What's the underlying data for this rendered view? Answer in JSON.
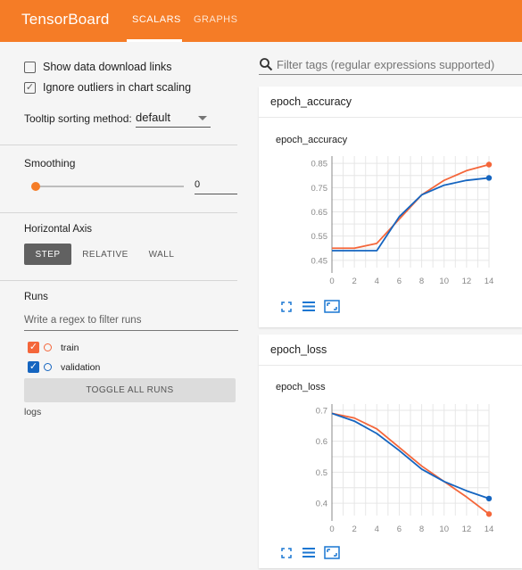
{
  "header": {
    "brand": "TensorBoard",
    "tabs": [
      {
        "label": "SCALARS",
        "active": true
      },
      {
        "label": "GRAPHS",
        "active": false
      }
    ],
    "accent": "#f57c26"
  },
  "sidebar": {
    "show_download_label": "Show data download links",
    "show_download_checked": false,
    "ignore_outliers_label": "Ignore outliers in chart scaling",
    "ignore_outliers_checked": true,
    "tooltip_label": "Tooltip sorting method:",
    "tooltip_value": "default",
    "smoothing_label": "Smoothing",
    "smoothing_value": "0",
    "haxis_label": "Horizontal Axis",
    "haxis_options": [
      "STEP",
      "RELATIVE",
      "WALL"
    ],
    "haxis_selected": "STEP",
    "runs_label": "Runs",
    "runs_filter_placeholder": "Write a regex to filter runs",
    "runs": [
      {
        "name": "train",
        "color": "#f4663a",
        "checked": true
      },
      {
        "name": "validation",
        "color": "#1565c0",
        "checked": true
      }
    ],
    "toggle_label": "TOGGLE ALL RUNS",
    "logdir": "logs"
  },
  "main": {
    "filter_placeholder": "Filter tags (regular expressions supported)",
    "cards": [
      {
        "header": "epoch_accuracy",
        "title": "epoch_accuracy"
      },
      {
        "header": "epoch_loss",
        "title": "epoch_loss"
      }
    ]
  },
  "chart_data": [
    {
      "type": "line",
      "title": "epoch_accuracy",
      "x": [
        0,
        2,
        4,
        6,
        8,
        10,
        12,
        14
      ],
      "xlim": [
        0,
        14
      ],
      "ylim": [
        0.42,
        0.88
      ],
      "yticks": [
        0.45,
        0.55,
        0.65,
        0.75,
        0.85
      ],
      "series": [
        {
          "name": "train",
          "color": "#f4663a",
          "values": [
            0.5,
            0.5,
            0.52,
            0.62,
            0.72,
            0.78,
            0.82,
            0.845
          ]
        },
        {
          "name": "validation",
          "color": "#1565c0",
          "values": [
            0.49,
            0.49,
            0.49,
            0.63,
            0.72,
            0.76,
            0.78,
            0.79
          ]
        }
      ]
    },
    {
      "type": "line",
      "title": "epoch_loss",
      "x": [
        0,
        2,
        4,
        6,
        8,
        10,
        12,
        14
      ],
      "xlim": [
        0,
        14
      ],
      "ylim": [
        0.36,
        0.72
      ],
      "yticks": [
        0.4,
        0.5,
        0.6,
        0.7
      ],
      "series": [
        {
          "name": "train",
          "color": "#f4663a",
          "values": [
            0.69,
            0.675,
            0.64,
            0.58,
            0.52,
            0.47,
            0.42,
            0.365
          ]
        },
        {
          "name": "validation",
          "color": "#1565c0",
          "values": [
            0.69,
            0.665,
            0.625,
            0.57,
            0.51,
            0.47,
            0.44,
            0.415
          ]
        }
      ]
    }
  ]
}
